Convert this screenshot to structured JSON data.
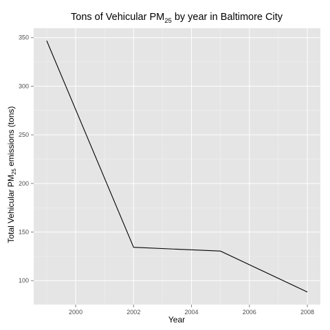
{
  "chart_data": {
    "type": "line",
    "title": {
      "prefix": "Tons of Vehicular PM",
      "subscript": "25",
      "suffix": " by year in Baltimore City"
    },
    "xlabel": "Year",
    "ylabel": {
      "prefix": "Total Vehicular PM",
      "subscript": "25",
      "suffix": " emissions (tons)"
    },
    "x": [
      1999,
      2002,
      2005,
      2008
    ],
    "series": [
      {
        "values": [
          346.8,
          134.3,
          130.4,
          88.3
        ],
        "color": "#000000"
      }
    ],
    "xlim": [
      1998.55,
      2008.45
    ],
    "ylim": [
      75.4,
      359.7
    ],
    "xticks": [
      2000,
      2002,
      2004,
      2006,
      2008
    ],
    "yticks": [
      100,
      150,
      200,
      250,
      300,
      350
    ],
    "grid": true,
    "panel_color": "#e5e5e5",
    "grid_color": "#ffffff"
  }
}
